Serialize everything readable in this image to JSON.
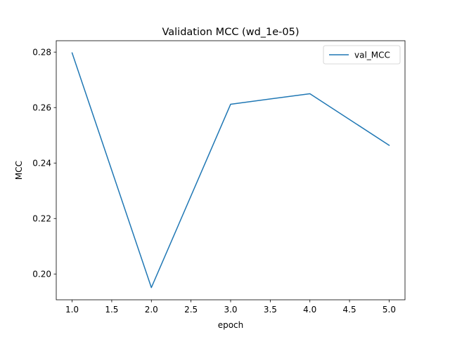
{
  "chart_data": {
    "type": "line",
    "title": "Validation MCC (wd_1e-05)",
    "xlabel": "epoch",
    "ylabel": "MCC",
    "xlim": [
      0.8,
      5.2
    ],
    "ylim": [
      0.1907,
      0.2841
    ],
    "xticks": [
      1.0,
      1.5,
      2.0,
      2.5,
      3.0,
      3.5,
      4.0,
      4.5,
      5.0
    ],
    "xtick_labels": [
      "1.0",
      "1.5",
      "2.0",
      "2.5",
      "3.0",
      "3.5",
      "4.0",
      "4.5",
      "5.0"
    ],
    "yticks": [
      0.2,
      0.22,
      0.24,
      0.26,
      0.28
    ],
    "ytick_labels": [
      "0.20",
      "0.22",
      "0.24",
      "0.26",
      "0.28"
    ],
    "grid": false,
    "legend_position": "upper right",
    "series": [
      {
        "name": "val_MCC",
        "color": "#1f77b4",
        "x": [
          1.0,
          2.0,
          3.0,
          4.0,
          5.0
        ],
        "y": [
          0.2797,
          0.1951,
          0.2612,
          0.265,
          0.2464
        ]
      }
    ]
  }
}
